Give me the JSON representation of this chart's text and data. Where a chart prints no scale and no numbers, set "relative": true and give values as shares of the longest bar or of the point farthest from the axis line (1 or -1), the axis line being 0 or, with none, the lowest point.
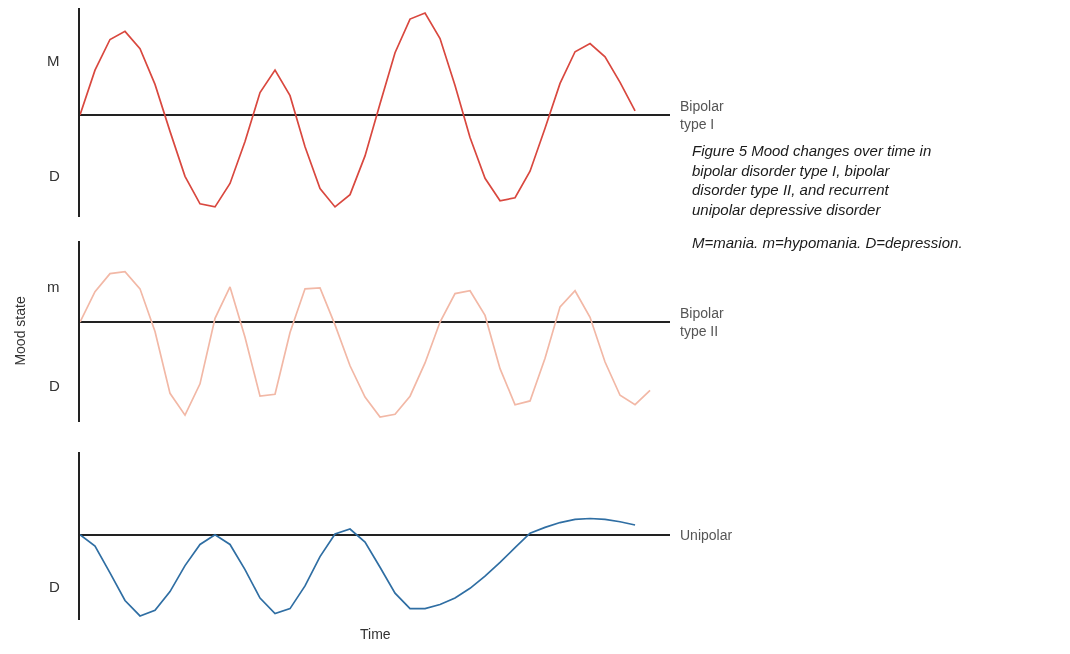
{
  "chart_data": [
    {
      "type": "line",
      "relative": true,
      "annotations": [
        "M",
        "D"
      ],
      "categories": [
        null,
        null,
        null,
        null,
        null,
        null,
        null,
        null,
        null,
        null,
        null,
        null,
        null,
        null,
        null,
        null,
        null,
        null,
        null,
        null,
        null,
        null,
        null,
        null,
        null,
        null,
        null,
        null,
        null,
        null,
        null,
        null,
        null,
        null,
        null,
        null,
        null,
        null,
        null,
        null
      ],
      "series": [
        {
          "name": "Bipolar type I",
          "color": "#d9483f",
          "values": [
            0,
            0.44,
            0.74,
            0.82,
            0.65,
            0.3,
            -0.16,
            -0.6,
            -0.87,
            -0.9,
            -0.67,
            -0.26,
            0.22,
            0.44,
            0.19,
            -0.31,
            -0.72,
            -0.9,
            -0.78,
            -0.4,
            0.11,
            0.61,
            0.94,
            1,
            0.75,
            0.29,
            -0.22,
            -0.62,
            -0.84,
            -0.81,
            -0.55,
            -0.13,
            0.31,
            0.62,
            0.7,
            0.57,
            0.32,
            0.04,
            null,
            null
          ]
        }
      ]
    },
    {
      "type": "line",
      "relative": true,
      "ylabel": "Mood state",
      "annotations": [
        "m",
        "D"
      ],
      "categories": [
        null,
        null,
        null,
        null,
        null,
        null,
        null,
        null,
        null,
        null,
        null,
        null,
        null,
        null,
        null,
        null,
        null,
        null,
        null,
        null,
        null,
        null,
        null,
        null,
        null,
        null,
        null,
        null,
        null,
        null,
        null,
        null,
        null,
        null,
        null,
        null,
        null,
        null,
        null,
        null
      ],
      "series": [
        {
          "name": "Bipolar type II",
          "color": "#f2b8a6",
          "values": [
            0,
            0.32,
            0.51,
            0.53,
            0.35,
            -0.1,
            -0.75,
            -0.98,
            -0.65,
            0.04,
            0.37,
            -0.16,
            -0.78,
            -0.76,
            -0.11,
            0.35,
            0.36,
            -0.03,
            -0.46,
            -0.79,
            -1,
            -0.97,
            -0.78,
            -0.43,
            0,
            0.3,
            0.33,
            0.07,
            -0.49,
            -0.87,
            -0.83,
            -0.38,
            0.16,
            0.33,
            0.05,
            -0.42,
            -0.77,
            -0.87,
            -0.72,
            null
          ]
        }
      ]
    },
    {
      "type": "line",
      "relative": true,
      "xlabel": "Time",
      "annotations": [
        "D"
      ],
      "categories": [
        null,
        null,
        null,
        null,
        null,
        null,
        null,
        null,
        null,
        null,
        null,
        null,
        null,
        null,
        null,
        null,
        null,
        null,
        null,
        null,
        null,
        null,
        null,
        null,
        null,
        null,
        null,
        null,
        null,
        null,
        null,
        null,
        null,
        null,
        null,
        null,
        null,
        null,
        null,
        null
      ],
      "series": [
        {
          "name": "Unipolar",
          "color": "#2f6ea3",
          "values": [
            0,
            -0.14,
            -0.47,
            -0.81,
            -1,
            -0.93,
            -0.7,
            -0.38,
            -0.12,
            0,
            -0.12,
            -0.43,
            -0.78,
            -0.97,
            -0.91,
            -0.63,
            -0.27,
            0.01,
            0.07,
            -0.09,
            -0.4,
            -0.72,
            -0.91,
            -0.91,
            -0.86,
            -0.78,
            -0.66,
            -0.51,
            -0.34,
            -0.16,
            0.02,
            0.09,
            0.15,
            0.19,
            0.2,
            0.19,
            0.16,
            0.12,
            null,
            null
          ]
        }
      ]
    },
    {
      "type": "other",
      "annotations": [
        "Figure 5 Mood changes over time in bipolar disorder type I, bipolar disorder type II, and recurrent unipolar depressive disorder",
        "M=mania. m=hypomania. D=depression."
      ]
    }
  ]
}
